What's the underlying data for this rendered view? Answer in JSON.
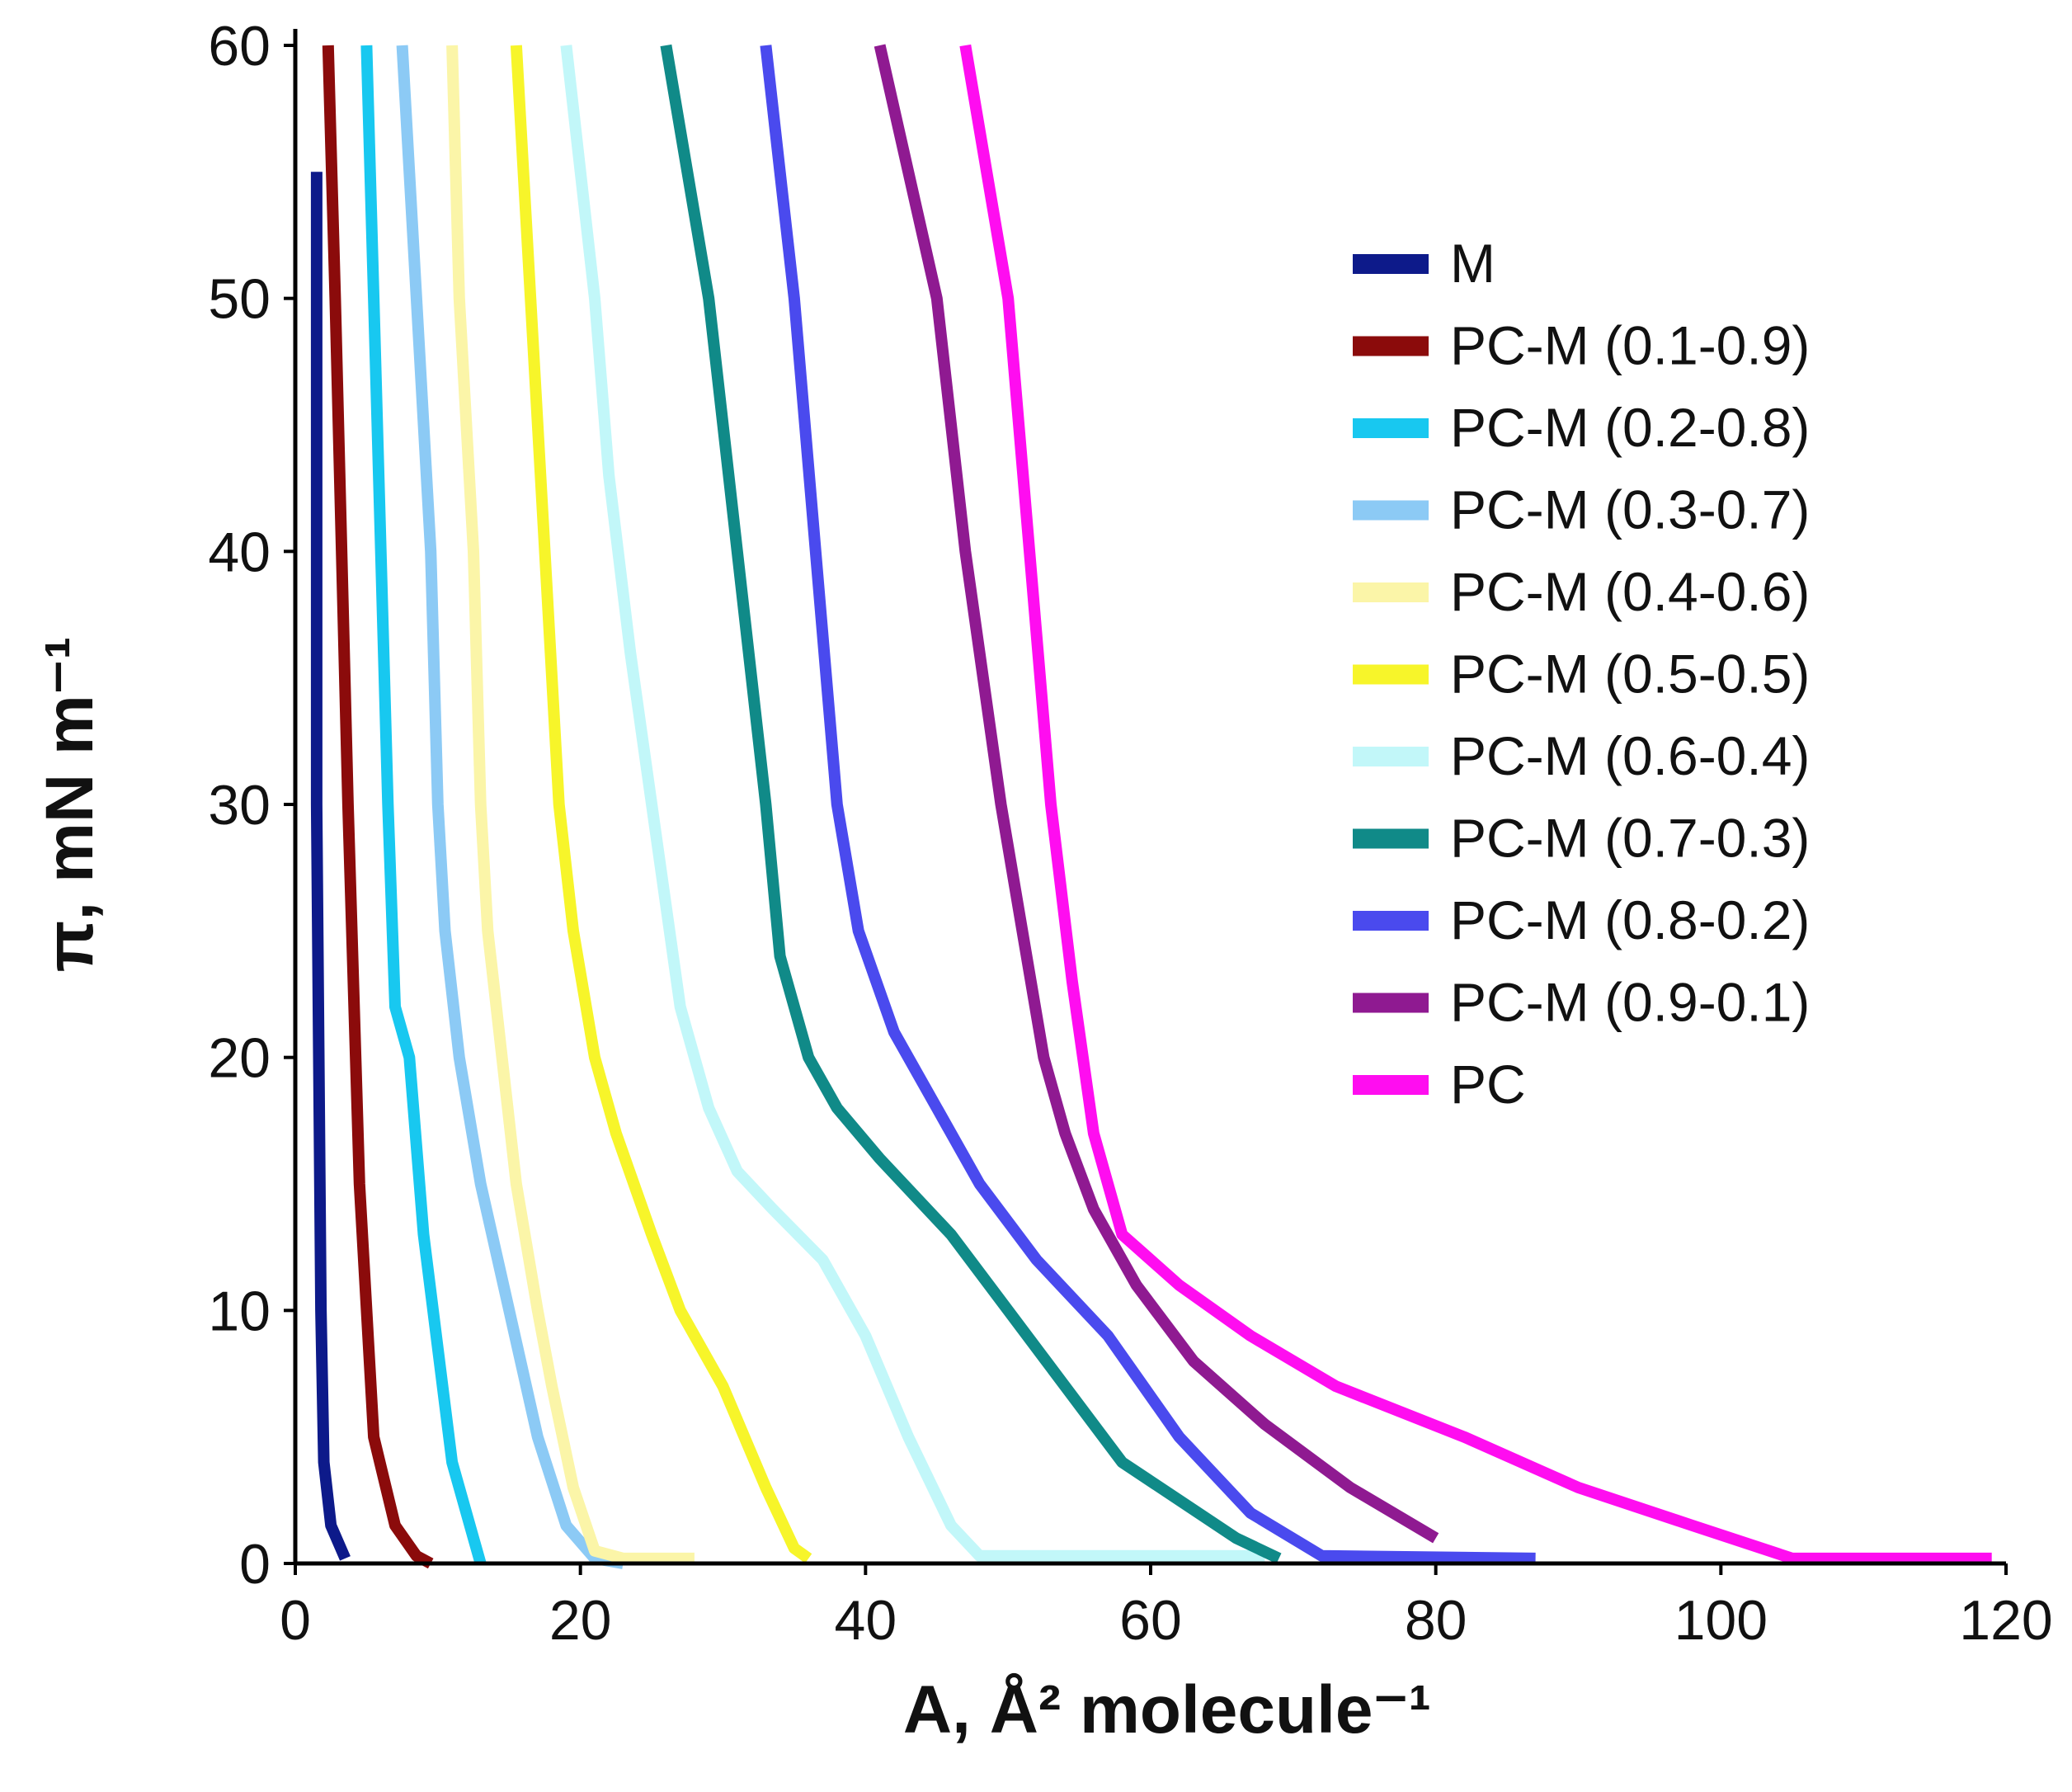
{
  "chart_data": {
    "type": "line",
    "title": "",
    "xlabel": "A, Å² molecule⁻¹",
    "ylabel": "π, mN m⁻¹",
    "xlim": [
      0,
      120
    ],
    "ylim": [
      0,
      60
    ],
    "xticks": [
      "0",
      "20",
      "40",
      "60",
      "80",
      "100",
      "120"
    ],
    "yticks": [
      "0",
      "10",
      "20",
      "30",
      "40",
      "50",
      "60"
    ],
    "legend_position": "right",
    "series": [
      {
        "name": "M",
        "color": "#0d1a8a",
        "points": [
          [
            3.5,
            0.2
          ],
          [
            2.5,
            1.5
          ],
          [
            2,
            4
          ],
          [
            1.8,
            10
          ],
          [
            1.5,
            30
          ],
          [
            1.5,
            55
          ]
        ]
      },
      {
        "name": "PC-M (0.1-0.9)",
        "color": "#8b0b0b",
        "points": [
          [
            9.5,
            0
          ],
          [
            8.5,
            0.3
          ],
          [
            7,
            1.5
          ],
          [
            5.5,
            5
          ],
          [
            4.5,
            15
          ],
          [
            3.7,
            30
          ],
          [
            2.8,
            50
          ],
          [
            2.3,
            60
          ]
        ]
      },
      {
        "name": "PC-M (0.2-0.8)",
        "color": "#18c8f0",
        "points": [
          [
            13,
            0
          ],
          [
            12.5,
            1
          ],
          [
            11,
            4
          ],
          [
            9,
            13
          ],
          [
            8,
            20
          ],
          [
            7,
            22
          ],
          [
            6.5,
            30
          ],
          [
            6,
            40
          ],
          [
            5.5,
            50
          ],
          [
            5,
            60
          ]
        ]
      },
      {
        "name": "PC-M (0.3-0.7)",
        "color": "#8ccaf5",
        "points": [
          [
            23,
            0
          ],
          [
            21,
            0.2
          ],
          [
            19,
            1.5
          ],
          [
            17,
            5
          ],
          [
            15,
            10
          ],
          [
            13,
            15
          ],
          [
            11.5,
            20
          ],
          [
            10.5,
            25
          ],
          [
            10,
            30
          ],
          [
            9.5,
            40
          ],
          [
            8.5,
            50
          ],
          [
            7.5,
            60
          ]
        ]
      },
      {
        "name": "PC-M (0.4-0.6)",
        "color": "#fbf5a8",
        "points": [
          [
            28,
            0.2
          ],
          [
            23,
            0.2
          ],
          [
            21,
            0.5
          ],
          [
            19.5,
            3
          ],
          [
            18,
            7
          ],
          [
            17,
            10
          ],
          [
            15.5,
            15
          ],
          [
            14.5,
            20
          ],
          [
            13.5,
            25
          ],
          [
            13,
            30
          ],
          [
            12.5,
            40
          ],
          [
            11.5,
            50
          ],
          [
            11,
            60
          ]
        ]
      },
      {
        "name": "PC-M (0.5-0.5)",
        "color": "#f7f52a",
        "points": [
          [
            36,
            0.2
          ],
          [
            35,
            0.6
          ],
          [
            33,
            3
          ],
          [
            30,
            7
          ],
          [
            27,
            10
          ],
          [
            25,
            13
          ],
          [
            22.5,
            17
          ],
          [
            21,
            20
          ],
          [
            19.5,
            25
          ],
          [
            18.5,
            30
          ],
          [
            17.5,
            40
          ],
          [
            16.5,
            50
          ],
          [
            15.5,
            60
          ]
        ]
      },
      {
        "name": "PC-M (0.6-0.4)",
        "color": "#c2f7f9",
        "points": [
          [
            68,
            0.3
          ],
          [
            48,
            0.3
          ],
          [
            46,
            1.5
          ],
          [
            43,
            5
          ],
          [
            40,
            9
          ],
          [
            37,
            12
          ],
          [
            33.5,
            14
          ],
          [
            31,
            15.5
          ],
          [
            29,
            18
          ],
          [
            27,
            22
          ],
          [
            26,
            26
          ],
          [
            25,
            30
          ],
          [
            23.5,
            36
          ],
          [
            22,
            43
          ],
          [
            21,
            50
          ],
          [
            20,
            55
          ],
          [
            19,
            60
          ]
        ]
      },
      {
        "name": "PC-M (0.7-0.3)",
        "color": "#108a88",
        "points": [
          [
            69,
            0.2
          ],
          [
            66,
            1
          ],
          [
            62,
            2.5
          ],
          [
            58,
            4
          ],
          [
            54,
            7
          ],
          [
            50,
            10
          ],
          [
            46,
            13
          ],
          [
            41,
            16
          ],
          [
            38,
            18
          ],
          [
            36,
            20
          ],
          [
            34,
            24
          ],
          [
            33,
            30
          ],
          [
            31,
            40
          ],
          [
            29,
            50
          ],
          [
            27.5,
            55
          ],
          [
            26,
            60
          ]
        ]
      },
      {
        "name": "PC-M (0.8-0.2)",
        "color": "#4a4aee",
        "points": [
          [
            87,
            0.2
          ],
          [
            72,
            0.3
          ],
          [
            67,
            2
          ],
          [
            62,
            5
          ],
          [
            57,
            9
          ],
          [
            52,
            12
          ],
          [
            48,
            15
          ],
          [
            45,
            18
          ],
          [
            42,
            21
          ],
          [
            39.5,
            25
          ],
          [
            38,
            30
          ],
          [
            36.5,
            40
          ],
          [
            35,
            50
          ],
          [
            34,
            55
          ],
          [
            33,
            60
          ]
        ]
      },
      {
        "name": "PC-M (0.9-0.1)",
        "color": "#8f1a91",
        "points": [
          [
            80,
            1
          ],
          [
            74,
            3
          ],
          [
            68,
            5.5
          ],
          [
            63,
            8
          ],
          [
            59,
            11
          ],
          [
            56,
            14
          ],
          [
            54,
            17
          ],
          [
            52.5,
            20
          ],
          [
            51,
            25
          ],
          [
            49.5,
            30
          ],
          [
            47,
            40
          ],
          [
            45,
            50
          ],
          [
            43,
            55
          ],
          [
            41,
            60
          ]
        ]
      },
      {
        "name": "PC",
        "color": "#ff0df0",
        "points": [
          [
            119,
            0.2
          ],
          [
            105,
            0.2
          ],
          [
            98,
            1.5
          ],
          [
            90,
            3
          ],
          [
            82,
            5
          ],
          [
            73,
            7
          ],
          [
            67,
            9
          ],
          [
            62,
            11
          ],
          [
            60,
            12
          ],
          [
            58,
            13
          ],
          [
            57.5,
            14
          ],
          [
            56,
            17
          ],
          [
            54.5,
            23
          ],
          [
            53,
            30
          ],
          [
            51.5,
            40
          ],
          [
            50,
            50
          ],
          [
            48.5,
            55
          ],
          [
            47,
            60
          ]
        ]
      }
    ]
  }
}
